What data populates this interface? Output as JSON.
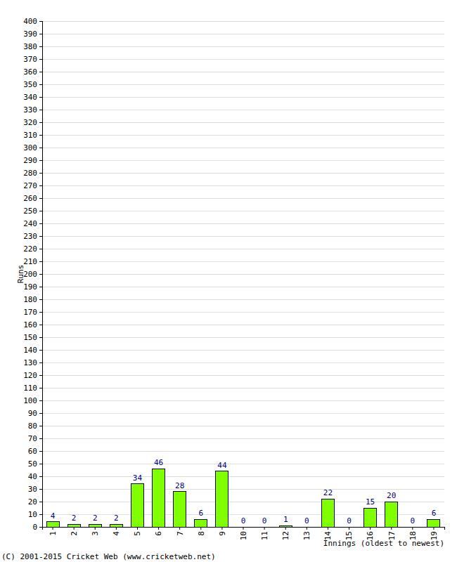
{
  "chart_data": {
    "type": "bar",
    "x_label": "Innings (oldest to newest)",
    "y_label": "Runs",
    "annotations": [
      "(C) 2001-2015 Cricket Web (www.cricketweb.net)"
    ],
    "categories": [
      "1",
      "2",
      "3",
      "4",
      "5",
      "6",
      "7",
      "8",
      "9",
      "10",
      "11",
      "12",
      "13",
      "14",
      "15",
      "16",
      "17",
      "18",
      "19"
    ],
    "values": [
      4,
      2,
      2,
      2,
      34,
      46,
      28,
      6,
      44,
      0,
      0,
      1,
      0,
      22,
      0,
      15,
      20,
      0,
      6
    ],
    "color": "#80ff00",
    "ylim": [
      0,
      400
    ],
    "yticks": [
      0,
      10,
      20,
      30,
      40,
      50,
      60,
      70,
      80,
      90,
      100,
      110,
      120,
      130,
      140,
      150,
      160,
      170,
      180,
      190,
      200,
      210,
      220,
      230,
      240,
      250,
      260,
      270,
      280,
      290,
      300,
      310,
      320,
      330,
      340,
      350,
      360,
      370,
      380,
      390,
      400
    ],
    "grid": true,
    "data_labels": true
  }
}
